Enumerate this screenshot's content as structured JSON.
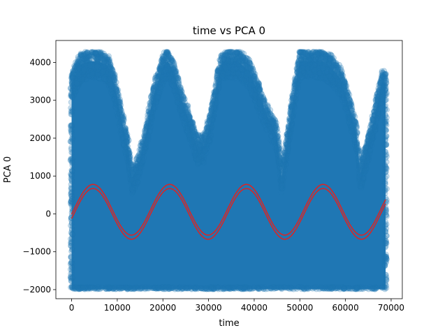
{
  "chart_data": {
    "type": "scatter",
    "title": "time vs PCA 0",
    "xlabel": "time",
    "ylabel": "PCA 0",
    "xlim": [
      -3450,
      72450
    ],
    "ylim": [
      -2240,
      4580
    ],
    "xticks": [
      0,
      10000,
      20000,
      30000,
      40000,
      50000,
      60000,
      70000
    ],
    "yticks": [
      -2000,
      -1000,
      0,
      1000,
      2000,
      3000,
      4000
    ],
    "grid": false,
    "legend": "none",
    "scatter_color": "#1f77b4",
    "scatter_alpha": 0.25,
    "line_color": "#d62728",
    "x_range": [
      0,
      68800
    ],
    "scatter": {
      "y_min": -1990,
      "y_max": 4280,
      "upper_envelope": [
        [
          0,
          3700
        ],
        [
          2000,
          4200
        ],
        [
          4000,
          4280
        ],
        [
          6000,
          4280
        ],
        [
          8000,
          4150
        ],
        [
          9500,
          3600
        ],
        [
          11000,
          2700
        ],
        [
          12400,
          2000
        ],
        [
          13200,
          1200
        ],
        [
          14500,
          1500
        ],
        [
          16000,
          2200
        ],
        [
          18000,
          3400
        ],
        [
          20000,
          4150
        ],
        [
          21000,
          4280
        ],
        [
          22000,
          4100
        ],
        [
          24000,
          3300
        ],
        [
          26000,
          2600
        ],
        [
          27500,
          2000
        ],
        [
          29000,
          2050
        ],
        [
          30500,
          2700
        ],
        [
          32000,
          3800
        ],
        [
          33000,
          4280
        ],
        [
          36500,
          4280
        ],
        [
          39000,
          4000
        ],
        [
          41000,
          3400
        ],
        [
          43000,
          2800
        ],
        [
          45000,
          2300
        ],
        [
          46000,
          1200
        ],
        [
          47500,
          2400
        ],
        [
          49000,
          3600
        ],
        [
          50000,
          4280
        ],
        [
          55000,
          4280
        ],
        [
          57000,
          4100
        ],
        [
          59000,
          3800
        ],
        [
          61000,
          3000
        ],
        [
          62500,
          2300
        ],
        [
          63200,
          1300
        ],
        [
          64500,
          1800
        ],
        [
          66000,
          2600
        ],
        [
          68000,
          3700
        ],
        [
          68800,
          3700
        ]
      ]
    },
    "series": [
      {
        "kind": "sine",
        "amplitude": 670,
        "period": 16800,
        "phase_x": 500,
        "offset": 0,
        "x": [
          0,
          68800
        ]
      },
      {
        "kind": "sine",
        "amplitude": 670,
        "period": 16800,
        "phase_x": 500,
        "offset": 110,
        "x": [
          0,
          68800
        ]
      }
    ]
  }
}
